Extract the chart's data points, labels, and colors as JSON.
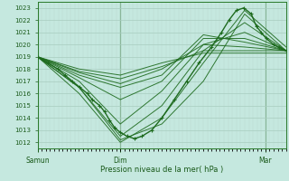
{
  "title": "Pression niveau de la mer( hPa )",
  "ylim_min": 1011.5,
  "ylim_max": 1023.5,
  "xlim_min": 0,
  "xlim_max": 1.0,
  "yticks": [
    1012,
    1013,
    1014,
    1015,
    1016,
    1017,
    1018,
    1019,
    1020,
    1021,
    1022,
    1023
  ],
  "xtick_positions": [
    0.0,
    0.333,
    0.917
  ],
  "xtick_labels": [
    "Samun",
    "Dim",
    "Mar"
  ],
  "bg_color": "#c5e8df",
  "grid_color_major": "#a8ccbf",
  "grid_color_minor": "#b8d8cc",
  "line_color": "#1e6b1e",
  "figsize": [
    3.2,
    2.0
  ],
  "dpi": 100,
  "ensemble_lines": [
    {
      "x": [
        0,
        0.167,
        0.333,
        0.5,
        0.667,
        0.833,
        1.0
      ],
      "y": [
        1019.0,
        1016.5,
        1012.2,
        1013.5,
        1017.0,
        1022.5,
        1019.5
      ]
    },
    {
      "x": [
        0,
        0.167,
        0.333,
        0.5,
        0.667,
        0.833,
        1.0
      ],
      "y": [
        1019.0,
        1016.0,
        1012.0,
        1014.0,
        1018.5,
        1022.8,
        1019.8
      ]
    },
    {
      "x": [
        0,
        0.167,
        0.333,
        0.5,
        0.667,
        0.833,
        1.0
      ],
      "y": [
        1019.0,
        1016.5,
        1012.5,
        1015.0,
        1019.5,
        1021.8,
        1019.5
      ]
    },
    {
      "x": [
        0,
        0.167,
        0.333,
        0.5,
        0.667,
        0.833,
        1.0
      ],
      "y": [
        1019.0,
        1017.0,
        1013.5,
        1016.2,
        1020.0,
        1021.0,
        1019.5
      ]
    },
    {
      "x": [
        0,
        0.167,
        0.333,
        0.5,
        0.667,
        0.833,
        1.0
      ],
      "y": [
        1019.0,
        1017.3,
        1015.5,
        1017.0,
        1020.5,
        1020.5,
        1019.5
      ]
    },
    {
      "x": [
        0,
        0.167,
        0.333,
        0.5,
        0.667,
        0.833,
        1.0
      ],
      "y": [
        1019.0,
        1017.5,
        1016.5,
        1017.5,
        1020.8,
        1020.2,
        1019.5
      ]
    },
    {
      "x": [
        0,
        0.167,
        0.333,
        0.5,
        0.667,
        0.833,
        1.0
      ],
      "y": [
        1019.0,
        1017.7,
        1016.8,
        1018.0,
        1020.0,
        1019.8,
        1019.5
      ]
    },
    {
      "x": [
        0,
        0.167,
        0.333,
        0.5,
        0.667,
        0.833,
        1.0
      ],
      "y": [
        1019.0,
        1017.8,
        1017.2,
        1018.2,
        1019.5,
        1019.5,
        1019.5
      ]
    },
    {
      "x": [
        0,
        0.167,
        0.333,
        0.5,
        0.667,
        0.833,
        1.0
      ],
      "y": [
        1019.0,
        1018.0,
        1017.5,
        1018.5,
        1019.3,
        1019.3,
        1019.3
      ]
    }
  ],
  "main_line_x": [
    0.0,
    0.04,
    0.08,
    0.11,
    0.14,
    0.17,
    0.2,
    0.22,
    0.25,
    0.27,
    0.29,
    0.31,
    0.333,
    0.36,
    0.39,
    0.42,
    0.46,
    0.5,
    0.55,
    0.6,
    0.65,
    0.7,
    0.74,
    0.77,
    0.8,
    0.83,
    0.86,
    0.88,
    0.9,
    0.92,
    0.95,
    0.97,
    1.0
  ],
  "main_line_y": [
    1019.0,
    1018.5,
    1018.0,
    1017.5,
    1017.0,
    1016.5,
    1016.0,
    1015.5,
    1015.0,
    1014.5,
    1013.8,
    1013.2,
    1012.8,
    1012.5,
    1012.3,
    1012.5,
    1013.0,
    1014.0,
    1015.5,
    1017.0,
    1018.5,
    1019.8,
    1021.0,
    1022.0,
    1022.8,
    1023.0,
    1022.5,
    1021.5,
    1021.0,
    1020.5,
    1020.0,
    1019.8,
    1019.5
  ]
}
